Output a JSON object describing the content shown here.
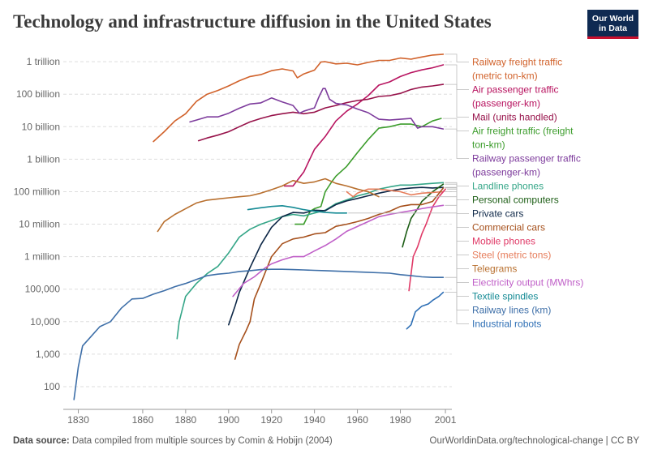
{
  "header": {
    "title": "Technology and infrastructure diffusion in the United States",
    "logo_line1": "Our World",
    "logo_line2": "in Data"
  },
  "footer": {
    "source_label": "Data source:",
    "source_text": "Data compiled from multiple sources by Comin & Hobijn (2004)",
    "url_text": "OurWorldinData.org/technological-change | CC BY"
  },
  "chart_data": {
    "type": "line",
    "title": "Technology and infrastructure diffusion in the United States",
    "xlabel": "",
    "ylabel": "",
    "log_scale_y": true,
    "grid": "horizontal dashed",
    "legend_placement": "right (line labels)",
    "xlim": [
      1823,
      2004
    ],
    "ylim": [
      20,
      3000000000000
    ],
    "x_ticks": [
      1830,
      1860,
      1880,
      1900,
      1920,
      1940,
      1960,
      1980,
      2001
    ],
    "y_ticks": [
      {
        "value": 100,
        "label": "100"
      },
      {
        "value": 1000,
        "label": "1,000"
      },
      {
        "value": 10000,
        "label": "10,000"
      },
      {
        "value": 100000,
        "label": "100,000"
      },
      {
        "value": 1000000,
        "label": "1 million"
      },
      {
        "value": 10000000,
        "label": "10 million"
      },
      {
        "value": 100000000,
        "label": "100 million"
      },
      {
        "value": 1000000000,
        "label": "1 billion"
      },
      {
        "value": 10000000000,
        "label": "10 billion"
      },
      {
        "value": 100000000000,
        "label": "100 billion"
      },
      {
        "value": 1000000000000,
        "label": "1 trillion"
      }
    ],
    "series": [
      {
        "name": "Railway freight traffic (metric ton-km)",
        "color": "#d1622b",
        "x": [
          1865,
          1870,
          1875,
          1880,
          1885,
          1890,
          1895,
          1900,
          1905,
          1910,
          1915,
          1920,
          1925,
          1930,
          1932,
          1935,
          1940,
          1943,
          1945,
          1950,
          1955,
          1960,
          1965,
          1970,
          1975,
          1980,
          1985,
          1990,
          1995,
          2000
        ],
        "y": [
          3500000000.0,
          7000000000.0,
          15000000000.0,
          25000000000.0,
          60000000000.0,
          100000000000.0,
          130000000000.0,
          180000000000.0,
          260000000000.0,
          350000000000.0,
          400000000000.0,
          530000000000.0,
          600000000000.0,
          520000000000.0,
          320000000000.0,
          420000000000.0,
          550000000000.0,
          980000000000.0,
          1000000000000.0,
          860000000000.0,
          900000000000.0,
          800000000000.0,
          950000000000.0,
          1100000000000.0,
          1100000000000.0,
          1300000000000.0,
          1200000000000.0,
          1400000000000.0,
          1600000000000.0,
          1700000000000.0
        ]
      },
      {
        "name": "Air passenger traffic (passenger-km)",
        "color": "#b81460",
        "x": [
          1926,
          1930,
          1935,
          1940,
          1945,
          1950,
          1955,
          1960,
          1965,
          1970,
          1975,
          1980,
          1985,
          1990,
          1995,
          2000
        ],
        "y": [
          150000000.0,
          150000000.0,
          400000000.0,
          2000000000.0,
          5000000000.0,
          15000000000.0,
          30000000000.0,
          50000000000.0,
          90000000000.0,
          190000000000.0,
          240000000000.0,
          350000000000.0,
          460000000000.0,
          560000000000.0,
          650000000000.0,
          800000000000.0
        ]
      },
      {
        "name": "Mail (units handled)",
        "color": "#97124a",
        "x": [
          1886,
          1890,
          1895,
          1900,
          1905,
          1910,
          1915,
          1920,
          1925,
          1930,
          1935,
          1940,
          1945,
          1950,
          1955,
          1960,
          1965,
          1970,
          1975,
          1980,
          1985,
          1990,
          1995,
          2000
        ],
        "y": [
          3700000000.0,
          4500000000.0,
          5500000000.0,
          7000000000.0,
          10000000000.0,
          14000000000.0,
          18000000000.0,
          22000000000.0,
          25000000000.0,
          28000000000.0,
          25000000000.0,
          28000000000.0,
          38000000000.0,
          45000000000.0,
          55000000000.0,
          64000000000.0,
          70000000000.0,
          85000000000.0,
          90000000000.0,
          106000000000.0,
          140000000000.0,
          166000000000.0,
          180000000000.0,
          200000000000.0
        ]
      },
      {
        "name": "Air freight traffic (freight ton-km)",
        "color": "#3b9c2b",
        "x": [
          1931,
          1935,
          1938,
          1940,
          1943,
          1945,
          1948,
          1950,
          1955,
          1960,
          1965,
          1970,
          1975,
          1980,
          1985,
          1990,
          1995,
          1999
        ],
        "y": [
          10000000.0,
          10000000.0,
          25000000.0,
          30000000.0,
          35000000.0,
          100000000.0,
          200000000.0,
          300000000.0,
          600000000.0,
          1600000000.0,
          4000000000.0,
          9000000000.0,
          10000000000.0,
          12000000000.0,
          12000000000.0,
          10000000000.0,
          15000000000.0,
          18000000000.0
        ]
      },
      {
        "name": "Railway passenger traffic (passenger-km)",
        "color": "#7d3b9c",
        "x": [
          1882,
          1885,
          1890,
          1895,
          1900,
          1905,
          1910,
          1915,
          1920,
          1925,
          1930,
          1933,
          1935,
          1940,
          1942,
          1944,
          1945,
          1947,
          1950,
          1955,
          1960,
          1965,
          1970,
          1975,
          1980,
          1985,
          1988,
          1990,
          1995,
          2000
        ],
        "y": [
          14000000000.0,
          16000000000.0,
          20000000000.0,
          20000000000.0,
          26000000000.0,
          37000000000.0,
          50000000000.0,
          54000000000.0,
          77000000000.0,
          58000000000.0,
          45000000000.0,
          26000000000.0,
          30000000000.0,
          38000000000.0,
          80000000000.0,
          150000000000.0,
          150000000000.0,
          70000000000.0,
          52000000000.0,
          47000000000.0,
          35000000000.0,
          27000000000.0,
          17000000000.0,
          16000000000.0,
          17000000000.0,
          18000000000.0,
          9000000000.0,
          10000000000.0,
          10000000000.0,
          8500000000.0
        ]
      },
      {
        "name": "Landline phones",
        "color": "#35a688",
        "x": [
          1876,
          1877,
          1880,
          1885,
          1890,
          1895,
          1900,
          1905,
          1910,
          1915,
          1920,
          1925,
          1930,
          1935,
          1940,
          1945,
          1950,
          1955,
          1960,
          1965,
          1970,
          1975,
          1980,
          1985,
          1990,
          1995,
          2000
        ],
        "y": [
          3000,
          10000.0,
          60000.0,
          150000.0,
          300000.0,
          500000.0,
          1300000.0,
          4000000.0,
          7000000.0,
          10000000.0,
          13000000.0,
          17000000.0,
          20000000.0,
          18000000.0,
          22000000.0,
          27000000.0,
          43000000.0,
          56000000.0,
          74000000.0,
          90000000.0,
          120000000.0,
          140000000.0,
          160000000.0,
          160000000.0,
          170000000.0,
          180000000.0,
          190000000.0
        ]
      },
      {
        "name": "Private cars",
        "color": "#0d2747",
        "x": [
          1900,
          1903,
          1905,
          1910,
          1915,
          1920,
          1925,
          1930,
          1935,
          1940,
          1945,
          1950,
          1955,
          1960,
          1965,
          1970,
          1975,
          1980,
          1985,
          1990,
          1995,
          2000
        ],
        "y": [
          8000,
          30000.0,
          80000.0,
          460000.0,
          2300000.0,
          8000000.0,
          17000000.0,
          23000000.0,
          22000000.0,
          27000000.0,
          26000000.0,
          40000000.0,
          52000000.0,
          62000000.0,
          75000000.0,
          90000000.0,
          105000000.0,
          120000000.0,
          130000000.0,
          135000000.0,
          130000000.0,
          135000000.0
        ]
      },
      {
        "name": "Personal computers",
        "color": "#1d5e16",
        "x": [
          1981,
          1983,
          1985,
          1988,
          1990,
          1995,
          2000
        ],
        "y": [
          2000000.0,
          6000000.0,
          15000000.0,
          30000000.0,
          50000000.0,
          100000000.0,
          170000000.0
        ]
      },
      {
        "name": "Steel (metric tons)",
        "color": "#e67c5a",
        "x": [
          1955,
          1958,
          1960,
          1965,
          1970,
          1975,
          1980,
          1985,
          1990,
          1995,
          2000
        ],
        "y": [
          100000000.0,
          70000000.0,
          90000000.0,
          120000000.0,
          120000000.0,
          110000000.0,
          100000000.0,
          80000000.0,
          90000000.0,
          95000000.0,
          100000000.0
        ]
      },
      {
        "name": "Mobile phones",
        "color": "#e03a67",
        "x": [
          1984,
          1986,
          1988,
          1990,
          1992,
          1995,
          1998,
          2001
        ],
        "y": [
          90000.0,
          1000000.0,
          2000000.0,
          5000000.0,
          10000000.0,
          34000000.0,
          70000000.0,
          120000000.0
        ]
      },
      {
        "name": "Commercial cars",
        "color": "#a6501c",
        "x": [
          1903,
          1905,
          1908,
          1910,
          1912,
          1915,
          1920,
          1925,
          1930,
          1935,
          1940,
          1945,
          1950,
          1955,
          1960,
          1965,
          1970,
          1975,
          1980,
          1985,
          1990,
          1995,
          2000
        ],
        "y": [
          700,
          2000,
          5000,
          10000.0,
          50000.0,
          150000.0,
          1000000.0,
          2500000.0,
          3500000.0,
          4000000.0,
          5000000.0,
          5500000.0,
          8600000.0,
          10000000.0,
          12000000.0,
          15000000.0,
          20000000.0,
          25000000.0,
          35000000.0,
          40000000.0,
          40000000.0,
          50000000.0,
          130000000.0
        ]
      },
      {
        "name": "Electricity output (MWhrs)",
        "color": "#c060c8",
        "x": [
          1902,
          1907,
          1912,
          1917,
          1920,
          1925,
          1930,
          1935,
          1940,
          1945,
          1950,
          1955,
          1960,
          1965,
          1970,
          1975,
          1980,
          1985,
          1990,
          1995,
          2000
        ],
        "y": [
          60000.0,
          150000.0,
          240000.0,
          450000.0,
          600000.0,
          800000.0,
          1000000.0,
          1000000.0,
          1500000.0,
          2200000.0,
          3500000.0,
          6000000.0,
          8500000.0,
          12000000.0,
          17000000.0,
          20000000.0,
          23000000.0,
          26000000.0,
          30000000.0,
          34000000.0,
          38000000.0
        ]
      },
      {
        "name": "Telegrams",
        "color": "#b86f2e",
        "x": [
          1867,
          1870,
          1875,
          1880,
          1885,
          1890,
          1895,
          1900,
          1905,
          1910,
          1915,
          1920,
          1925,
          1930,
          1935,
          1940,
          1945,
          1950,
          1955,
          1960,
          1965,
          1970
        ],
        "y": [
          6000000.0,
          12000000.0,
          20000000.0,
          30000000.0,
          45000000.0,
          55000000.0,
          60000000.0,
          65000000.0,
          70000000.0,
          75000000.0,
          90000000.0,
          115000000.0,
          150000000.0,
          220000000.0,
          180000000.0,
          200000000.0,
          250000000.0,
          180000000.0,
          150000000.0,
          120000000.0,
          100000000.0,
          70000000.0
        ]
      },
      {
        "name": "Textile spindles",
        "color": "#148a94",
        "x": [
          1909,
          1915,
          1920,
          1925,
          1930,
          1935,
          1940,
          1945,
          1950,
          1955
        ],
        "y": [
          28000000.0,
          32000000.0,
          35000000.0,
          37000000.0,
          33000000.0,
          28000000.0,
          25000000.0,
          23000000.0,
          22000000.0,
          22000000.0
        ]
      },
      {
        "name": "Railway lines (km)",
        "color": "#3e6fa8",
        "x": [
          1828,
          1830,
          1832,
          1835,
          1840,
          1845,
          1850,
          1855,
          1860,
          1865,
          1870,
          1875,
          1880,
          1885,
          1890,
          1895,
          1900,
          1905,
          1910,
          1915,
          1920,
          1925,
          1930,
          1935,
          1940,
          1945,
          1950,
          1955,
          1960,
          1965,
          1970,
          1975,
          1980,
          1985,
          1990,
          1995,
          2000
        ],
        "y": [
          40,
          400,
          1800,
          3000,
          7000,
          10000.0,
          26000.0,
          50000.0,
          52000.0,
          70000.0,
          90000.0,
          120000.0,
          150000.0,
          200000.0,
          260000.0,
          290000.0,
          310000.0,
          350000.0,
          370000.0,
          400000.0,
          410000.0,
          410000.0,
          400000.0,
          390000.0,
          380000.0,
          370000.0,
          360000.0,
          350000.0,
          340000.0,
          330000.0,
          320000.0,
          310000.0,
          280000.0,
          260000.0,
          240000.0,
          230000.0,
          230000.0
        ]
      },
      {
        "name": "Industrial robots",
        "color": "#2e6fb5",
        "x": [
          1983,
          1985,
          1986,
          1987,
          1990,
          1993,
          1995,
          1998,
          2000
        ],
        "y": [
          6000,
          8000,
          13000.0,
          20000.0,
          30000.0,
          35000.0,
          45000.0,
          60000.0,
          80000.0
        ]
      }
    ]
  }
}
